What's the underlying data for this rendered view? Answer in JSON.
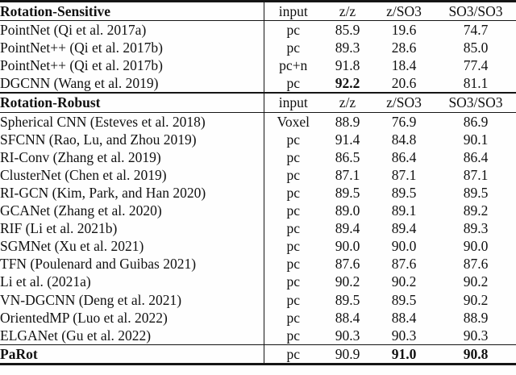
{
  "table": {
    "columns": [
      "input",
      "z/z",
      "z/SO3",
      "SO3/SO3"
    ],
    "sections": [
      {
        "header": "Rotation-Sensitive",
        "rows": [
          {
            "method": "PointNet (Qi et al. 2017a)",
            "input": "pc",
            "zz": "85.9",
            "zso3": "19.6",
            "so3so3": "74.7",
            "bold": []
          },
          {
            "method": "PointNet++ (Qi et al. 2017b)",
            "input": "pc",
            "zz": "89.3",
            "zso3": "28.6",
            "so3so3": "85.0",
            "bold": []
          },
          {
            "method": "PointNet++ (Qi et al. 2017b)",
            "input": "pc+n",
            "zz": "91.8",
            "zso3": "18.4",
            "so3so3": "77.4",
            "bold": []
          },
          {
            "method": "DGCNN (Wang et al. 2019)",
            "input": "pc",
            "zz": "92.2",
            "zso3": "20.6",
            "so3so3": "81.1",
            "bold": [
              "zz"
            ]
          }
        ]
      },
      {
        "header": "Rotation-Robust",
        "rows": [
          {
            "method": "Spherical CNN (Esteves et al. 2018)",
            "input": "Voxel",
            "zz": "88.9",
            "zso3": "76.9",
            "so3so3": "86.9",
            "bold": []
          },
          {
            "method": "SFCNN (Rao, Lu, and Zhou 2019)",
            "input": "pc",
            "zz": "91.4",
            "zso3": "84.8",
            "so3so3": "90.1",
            "bold": []
          },
          {
            "method": "RI-Conv (Zhang et al. 2019)",
            "input": "pc",
            "zz": "86.5",
            "zso3": "86.4",
            "so3so3": "86.4",
            "bold": []
          },
          {
            "method": "ClusterNet (Chen et al. 2019)",
            "input": "pc",
            "zz": "87.1",
            "zso3": "87.1",
            "so3so3": "87.1",
            "bold": []
          },
          {
            "method": "RI-GCN (Kim, Park, and Han 2020)",
            "input": "pc",
            "zz": "89.5",
            "zso3": "89.5",
            "so3so3": "89.5",
            "bold": []
          },
          {
            "method": "GCANet (Zhang et al. 2020)",
            "input": "pc",
            "zz": "89.0",
            "zso3": "89.1",
            "so3so3": "89.2",
            "bold": []
          },
          {
            "method": "RIF (Li et al. 2021b)",
            "input": "pc",
            "zz": "89.4",
            "zso3": "89.4",
            "so3so3": "89.3",
            "bold": []
          },
          {
            "method": "SGMNet (Xu et al. 2021)",
            "input": "pc",
            "zz": "90.0",
            "zso3": "90.0",
            "so3so3": "90.0",
            "bold": []
          },
          {
            "method": "TFN (Poulenard and Guibas 2021)",
            "input": "pc",
            "zz": "87.6",
            "zso3": "87.6",
            "so3so3": "87.6",
            "bold": []
          },
          {
            "method": "Li et al. (2021a)",
            "input": "pc",
            "zz": "90.2",
            "zso3": "90.2",
            "so3so3": "90.2",
            "bold": []
          },
          {
            "method": "VN-DGCNN (Deng et al. 2021)",
            "input": "pc",
            "zz": "89.5",
            "zso3": "89.5",
            "so3so3": "90.2",
            "bold": []
          },
          {
            "method": "OrientedMP (Luo et al. 2022)",
            "input": "pc",
            "zz": "88.4",
            "zso3": "88.4",
            "so3so3": "88.9",
            "bold": []
          },
          {
            "method": "ELGANet (Gu et al. 2022)",
            "input": "pc",
            "zz": "90.3",
            "zso3": "90.3",
            "so3so3": "90.3",
            "bold": []
          }
        ]
      }
    ],
    "footer": {
      "method": "PaRot",
      "input": "pc",
      "zz": "90.9",
      "zso3": "91.0",
      "so3so3": "90.8",
      "bold": [
        "method",
        "zso3",
        "so3so3"
      ]
    }
  }
}
